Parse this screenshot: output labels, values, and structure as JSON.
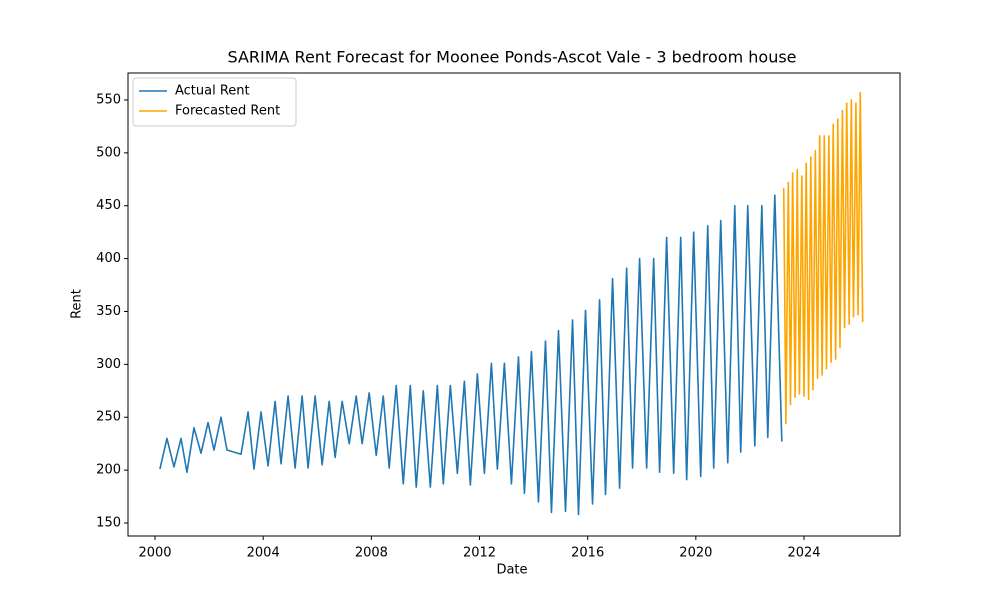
{
  "chart_data": {
    "type": "line",
    "title": "SARIMA Rent Forecast for Moonee Ponds-Ascot Vale - 3 bedroom house",
    "x_label": "Date",
    "y_label": "Rent",
    "xlim": [
      1999.0,
      2027.55
    ],
    "ylim": [
      137.7,
      575.5
    ],
    "xticks": [
      2000,
      2004,
      2008,
      2012,
      2016,
      2020,
      2024
    ],
    "yticks": [
      150,
      200,
      250,
      300,
      350,
      400,
      450,
      500,
      550
    ],
    "legend": "upper left",
    "series": [
      {
        "name": "Actual Rent",
        "color": "#1f77b4",
        "x": [
          2000.18,
          2000.44,
          2000.7,
          2000.96,
          2001.18,
          2001.44,
          2001.7,
          2001.96,
          2002.18,
          2002.44,
          2002.66,
          2003.18,
          2003.44,
          2003.66,
          2003.92,
          2004.18,
          2004.44,
          2004.66,
          2004.92,
          2005.18,
          2005.44,
          2005.66,
          2005.92,
          2006.18,
          2006.44,
          2006.66,
          2006.92,
          2007.18,
          2007.44,
          2007.66,
          2007.92,
          2008.18,
          2008.44,
          2008.66,
          2008.92,
          2009.18,
          2009.44,
          2009.66,
          2009.92,
          2010.18,
          2010.44,
          2010.66,
          2010.92,
          2011.18,
          2011.44,
          2011.66,
          2011.92,
          2012.18,
          2012.44,
          2012.66,
          2012.92,
          2013.18,
          2013.44,
          2013.66,
          2013.92,
          2014.18,
          2014.44,
          2014.66,
          2014.92,
          2015.18,
          2015.44,
          2015.66,
          2015.92,
          2016.18,
          2016.44,
          2016.66,
          2016.92,
          2017.18,
          2017.44,
          2017.66,
          2017.92,
          2018.18,
          2018.44,
          2018.66,
          2018.92,
          2019.18,
          2019.44,
          2019.66,
          2019.92,
          2020.18,
          2020.44,
          2020.66,
          2020.92,
          2021.18,
          2021.44,
          2021.66,
          2021.92,
          2022.18,
          2022.44,
          2022.66,
          2022.92,
          2023.18
        ],
        "values": [
          201,
          230,
          203,
          230,
          198,
          240,
          216,
          245,
          219,
          250,
          219,
          215,
          255,
          201,
          255,
          204,
          265,
          206,
          270,
          202,
          270,
          202,
          270,
          205,
          265,
          212,
          265,
          225,
          270,
          225,
          273,
          214,
          270,
          202,
          280,
          187,
          280,
          184,
          275,
          184,
          280,
          187,
          280,
          197,
          284,
          186,
          291,
          197,
          301,
          201,
          301,
          187,
          307,
          178,
          312,
          170,
          322,
          160,
          332,
          161,
          342,
          158,
          351,
          168,
          361,
          177,
          381,
          183,
          391,
          202,
          400,
          202,
          400,
          198,
          420,
          197,
          420,
          191,
          425,
          194,
          431,
          202,
          436,
          207,
          450,
          217,
          450,
          223,
          450,
          231,
          460,
          227
        ]
      },
      {
        "name": "Forecasted Rent",
        "color": "#ffa500",
        "x": [
          2023.25,
          2023.33,
          2023.42,
          2023.5,
          2023.58,
          2023.67,
          2023.75,
          2023.83,
          2023.92,
          2024.0,
          2024.08,
          2024.17,
          2024.25,
          2024.33,
          2024.42,
          2024.5,
          2024.58,
          2024.67,
          2024.75,
          2024.83,
          2024.92,
          2025.0,
          2025.08,
          2025.17,
          2025.25,
          2025.33,
          2025.42,
          2025.5,
          2025.58,
          2025.67,
          2025.75,
          2025.83,
          2025.92,
          2026.0,
          2026.08,
          2026.17
        ],
        "values": [
          467,
          244,
          472,
          262,
          481,
          269,
          484,
          272,
          478,
          270,
          490,
          267,
          496,
          276,
          502,
          287,
          516,
          290,
          516,
          296,
          516,
          302,
          527,
          305,
          532,
          316,
          540,
          335,
          547,
          338,
          550,
          345,
          547,
          347,
          557,
          340
        ]
      }
    ]
  }
}
